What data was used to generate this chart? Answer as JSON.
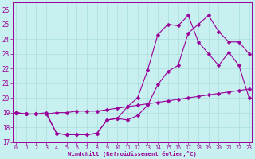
{
  "xlabel": "Windchill (Refroidissement éolien,°C)",
  "bg_color": "#c8f0f0",
  "line_color": "#990099",
  "xlim": [
    -0.3,
    23.3
  ],
  "ylim": [
    17,
    26.5
  ],
  "yticks": [
    17,
    18,
    19,
    20,
    21,
    22,
    23,
    24,
    25,
    26
  ],
  "xticks": [
    0,
    1,
    2,
    3,
    4,
    5,
    6,
    7,
    8,
    9,
    10,
    11,
    12,
    13,
    14,
    15,
    16,
    17,
    18,
    19,
    20,
    21,
    22,
    23
  ],
  "line1_x": [
    0,
    1,
    2,
    3,
    4,
    5,
    6,
    7,
    8,
    9,
    10,
    11,
    12,
    13,
    14,
    15,
    16,
    17,
    18,
    19,
    20,
    21,
    22,
    23
  ],
  "line1_y": [
    19.0,
    18.9,
    18.9,
    18.9,
    17.6,
    17.5,
    17.5,
    17.5,
    17.6,
    18.5,
    18.6,
    18.5,
    18.8,
    19.5,
    20.9,
    21.8,
    22.2,
    24.4,
    25.0,
    25.6,
    24.5,
    23.8,
    23.8,
    23.0
  ],
  "line2_x": [
    0,
    1,
    2,
    3,
    4,
    5,
    6,
    7,
    8,
    9,
    10,
    11,
    12,
    13,
    14,
    15,
    16,
    17,
    18,
    19,
    20,
    21,
    22,
    23
  ],
  "line2_y": [
    19.0,
    18.9,
    18.9,
    18.9,
    19.0,
    19.0,
    19.1,
    19.1,
    19.1,
    19.2,
    19.3,
    19.4,
    19.5,
    19.6,
    19.7,
    19.8,
    19.9,
    20.0,
    20.1,
    20.2,
    20.3,
    20.4,
    20.5,
    20.6
  ],
  "line3_x": [
    0,
    1,
    2,
    3,
    4,
    5,
    6,
    7,
    8,
    9,
    10,
    11,
    12,
    13,
    14,
    15,
    16,
    17,
    18,
    19,
    20,
    21,
    22,
    23
  ],
  "line3_y": [
    19.0,
    18.9,
    18.9,
    19.0,
    17.6,
    17.5,
    17.5,
    17.5,
    17.6,
    18.5,
    18.6,
    19.4,
    20.0,
    21.9,
    24.3,
    25.0,
    24.9,
    25.6,
    23.8,
    23.0,
    22.2,
    23.1,
    22.2,
    20.0
  ],
  "grid_color": "#aadddd",
  "marker": "D",
  "markersize": 2.5
}
